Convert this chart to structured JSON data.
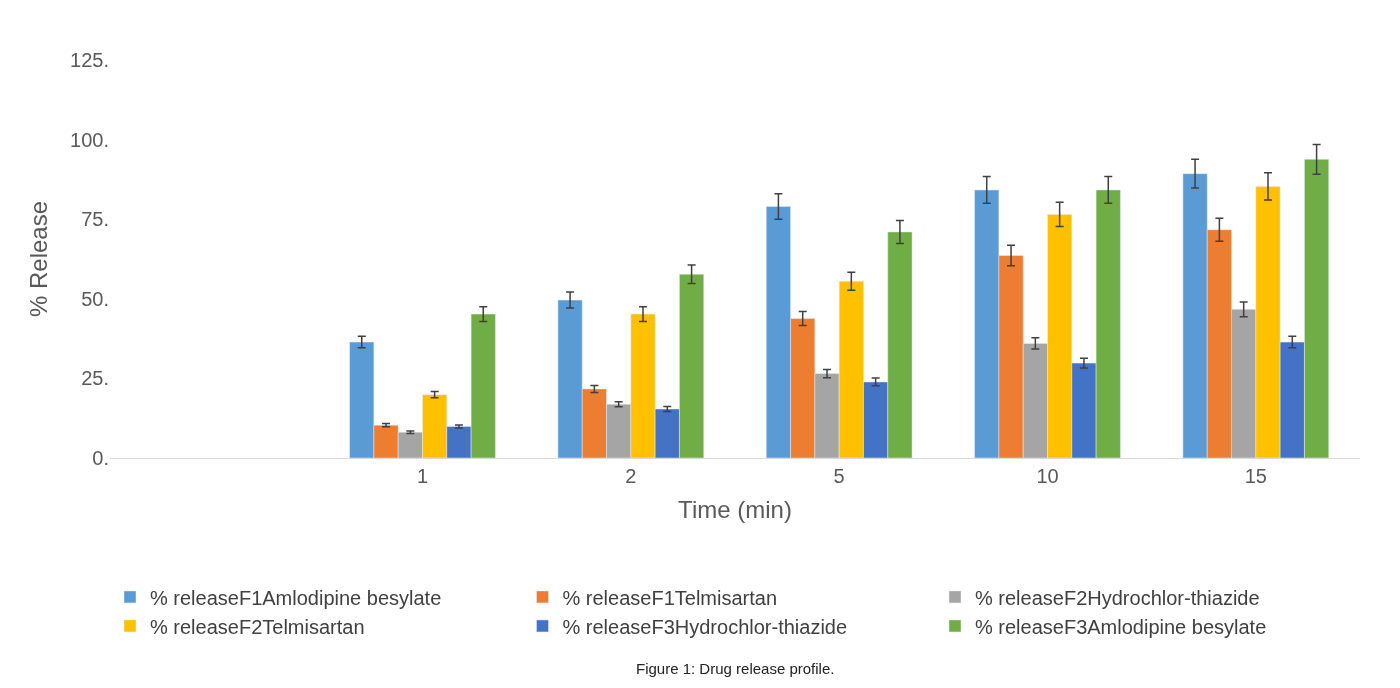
{
  "chart_data": {
    "type": "bar",
    "xlabel": "Time (min)",
    "ylabel": "% Release",
    "categories": [
      null,
      "1",
      "2",
      "5",
      "10",
      "15"
    ],
    "series": [
      {
        "name": "% releaseF1Amlodipine besylate",
        "color": "#5b9bd5",
        "values": [
          null,
          36.4,
          49.6,
          79,
          84.2,
          89.3
        ],
        "errors": [
          null,
          1.8,
          2.5,
          4,
          4.2,
          4.5
        ]
      },
      {
        "name": "% releaseF1Telmisartan",
        "color": "#ed7d31",
        "values": [
          null,
          10.3,
          21.7,
          43.8,
          63.6,
          71.7
        ],
        "errors": [
          null,
          0.5,
          1.1,
          2.2,
          3.2,
          3.6
        ]
      },
      {
        "name": "% releaseF2Hydrochlor-thiazide",
        "color": "#a5a5a5",
        "values": [
          null,
          8.1,
          16.9,
          26.5,
          36,
          46.7
        ],
        "errors": [
          null,
          0.4,
          0.8,
          1.3,
          1.8,
          2.3
        ]
      },
      {
        "name": "% releaseF2Telmisartan",
        "color": "#ffc000",
        "values": [
          null,
          19.9,
          45.2,
          55.5,
          76.5,
          85.3
        ],
        "errors": [
          null,
          1,
          2.3,
          2.8,
          3.8,
          4.3
        ]
      },
      {
        "name": "% releaseF3Hydrochlor-thiazide",
        "color": "#4472c4",
        "values": [
          null,
          9.9,
          15.4,
          23.9,
          29.8,
          36.4
        ],
        "errors": [
          null,
          0.5,
          0.8,
          1.2,
          1.5,
          1.8
        ]
      },
      {
        "name": "% releaseF3Amlodipine besylate",
        "color": "#70ad47",
        "values": [
          null,
          45.2,
          57.7,
          71,
          84.2,
          93.8
        ],
        "errors": [
          null,
          2.3,
          2.9,
          3.6,
          4.2,
          4.7
        ]
      }
    ],
    "ylim": [
      0,
      125
    ],
    "yticks": [
      {
        "value": 0,
        "label": "0."
      },
      {
        "value": 25,
        "label": "25."
      },
      {
        "value": 50,
        "label": "50."
      },
      {
        "value": 75,
        "label": "75."
      },
      {
        "value": 100,
        "label": "100."
      },
      {
        "value": 125,
        "label": "125."
      }
    ],
    "legend": "bottom",
    "annotations": [
      "Figure 1: Drug release profile."
    ]
  }
}
